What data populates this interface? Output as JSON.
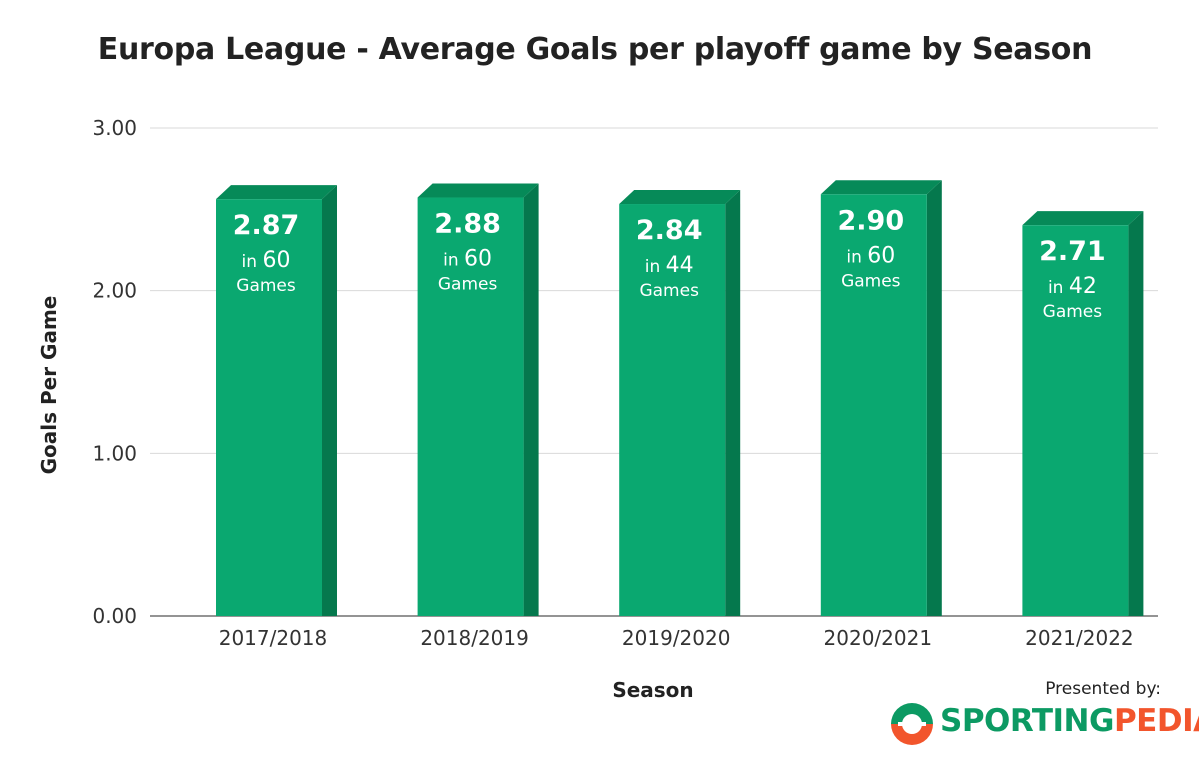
{
  "chart_data": {
    "type": "bar",
    "title": "Europa League - Average Goals per playoff game by Season",
    "xlabel": "Season",
    "ylabel": "Goals Per Game",
    "ylim": [
      0,
      3
    ],
    "yticks": [
      "0.00",
      "1.00",
      "2.00",
      "3.00"
    ],
    "categories": [
      "2017/2018",
      "2018/2019",
      "2019/2020",
      "2020/2021",
      "2021/2022"
    ],
    "values": [
      2.87,
      2.88,
      2.84,
      2.9,
      2.71
    ],
    "value_labels": [
      "2.87",
      "2.88",
      "2.84",
      "2.90",
      "2.71"
    ],
    "games": [
      "60",
      "60",
      "44",
      "60",
      "42"
    ],
    "label_in": "in",
    "label_games": "Games",
    "grid": true,
    "colors": {
      "bar_front": "#0aa870",
      "bar_side": "#05784d",
      "bar_top": "#068a58",
      "grid": "#d9d9d9"
    }
  },
  "footer": {
    "presented_by": "Presented by:",
    "logo_part1": "SPORTING",
    "logo_part2": "PEDIA",
    "logo_colors": {
      "green": "#0c9a63",
      "orange": "#f2552c"
    }
  }
}
